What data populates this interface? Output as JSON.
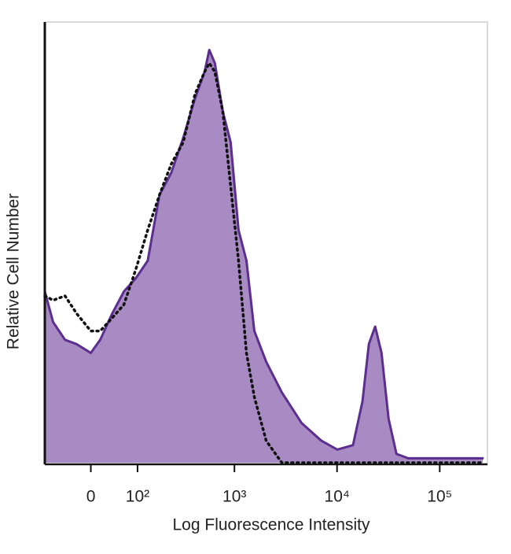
{
  "chart_data": {
    "type": "histogram-overlay",
    "xlabel": "Log Fluorescence Intensity",
    "ylabel": "Relative Cell Number",
    "xscale": "biexponential",
    "xlim": [
      -98,
      262144
    ],
    "ylim": [
      0,
      100
    ],
    "xticks": [
      {
        "value": 0,
        "label": "0"
      },
      {
        "value": 100,
        "label": "10²"
      },
      {
        "value": 1000,
        "label": "10³"
      },
      {
        "value": 10000,
        "label": "10⁴"
      },
      {
        "value": 100000,
        "label": "10⁵"
      }
    ],
    "x": [
      -98,
      -76,
      -49,
      -26,
      0,
      17,
      40,
      65,
      95,
      132,
      178,
      236,
      313,
      410,
      509,
      567,
      643,
      769,
      918,
      1097,
      1310,
      1564,
      2040,
      2900,
      4530,
      7050,
      10040,
      14300,
      17700,
      20400,
      23500,
      27100,
      31800,
      37900,
      49400,
      100500,
      262144
    ],
    "series": [
      {
        "color": "#5b2e90",
        "fill": "#a88bc2",
        "linestyle": "solid",
        "filled": true,
        "values": [
          39,
          32,
          28,
          27,
          25,
          28,
          34,
          39,
          42,
          46,
          61,
          66,
          74,
          83,
          89,
          94,
          91,
          80,
          73,
          53,
          46,
          30,
          23,
          16,
          9,
          5,
          3,
          4,
          14,
          27,
          31,
          25,
          10,
          2,
          1,
          1,
          1
        ]
      },
      {
        "color": "#111111",
        "linestyle": "dotted",
        "filled": false,
        "values": [
          38,
          37,
          38,
          34,
          30,
          30,
          33,
          36,
          44,
          53,
          61,
          68,
          73,
          84,
          89,
          91,
          89,
          80,
          63,
          46,
          25,
          15,
          5,
          0,
          0,
          0,
          0,
          0,
          0,
          0,
          0,
          0,
          0,
          0,
          0,
          0,
          0
        ]
      }
    ]
  }
}
